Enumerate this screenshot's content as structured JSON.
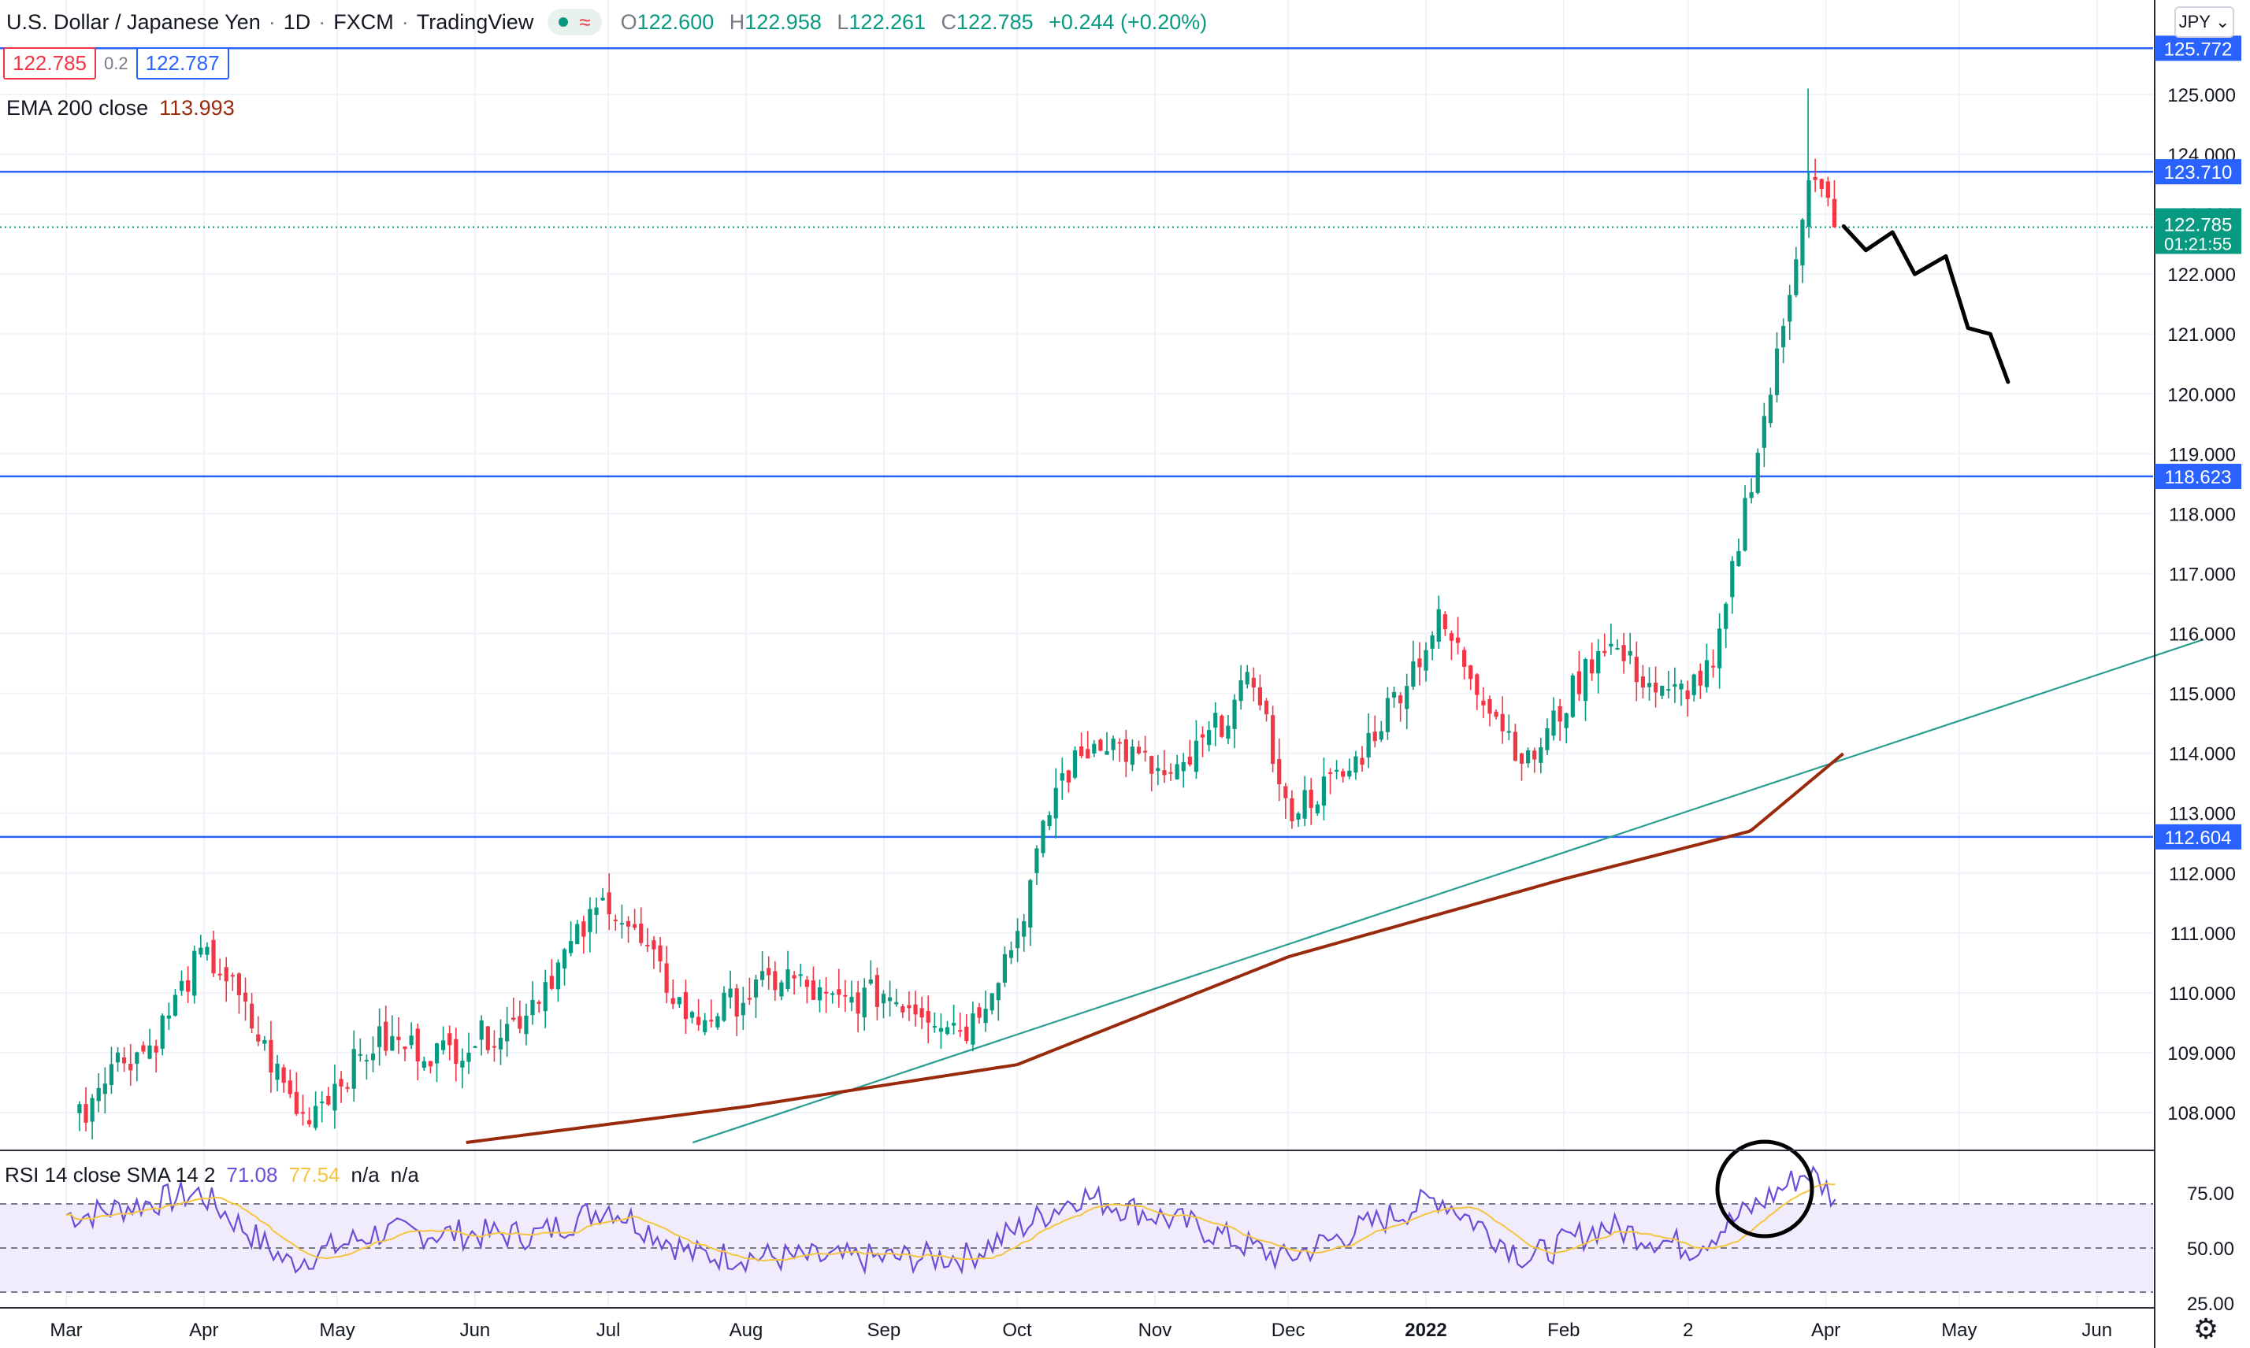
{
  "header": {
    "symbol": "U.S. Dollar / Japanese Yen",
    "interval": "1D",
    "broker": "FXCM",
    "platform": "TradingView",
    "sep": "·",
    "ohlc": {
      "o_label": "O",
      "o": "122.600",
      "h_label": "H",
      "h": "122.958",
      "l_label": "L",
      "l": "122.261",
      "c_label": "C",
      "c": "122.785",
      "change": "+0.244 (+0.20%)"
    },
    "bid": "122.785",
    "spread": "0.2",
    "ask": "122.787",
    "currency_button": "JPY"
  },
  "ema_legend": {
    "label": "EMA 200 close",
    "value": "113.993"
  },
  "rsi_legend": {
    "label": "RSI 14 close SMA 14 2",
    "rsi": "71.08",
    "sma": "77.54",
    "na1": "n/a",
    "na2": "n/a"
  },
  "colors": {
    "up": "#089981",
    "down": "#f23645",
    "ema": "#992b0c",
    "hline": "#2962ff",
    "trend": "#2a9d8f",
    "rsi": "#6c4ed6",
    "rsi_ma": "#f5c542",
    "rsi_band": "#f0ecfb"
  },
  "price_axis": {
    "ticks": [
      "108.000",
      "109.000",
      "110.000",
      "111.000",
      "112.000",
      "113.000",
      "114.000",
      "115.000",
      "116.000",
      "117.000",
      "118.000",
      "119.000",
      "120.000",
      "121.000",
      "122.000",
      "123.000",
      "124.000",
      "125.000"
    ],
    "hline_labels": [
      "125.772",
      "123.710",
      "118.623",
      "112.604"
    ],
    "last_price": "122.785",
    "countdown": "01:21:55"
  },
  "rsi_axis": {
    "ticks": [
      "75.00",
      "50.00",
      "25.00"
    ]
  },
  "time_axis": [
    "Mar",
    "Apr",
    "May",
    "Jun",
    "Jul",
    "Aug",
    "Sep",
    "Oct",
    "Nov",
    "Dec",
    "2022",
    "Feb",
    "2",
    "Apr",
    "May",
    "Jun"
  ],
  "chart_data": {
    "type": "candlestick",
    "title": "U.S. Dollar / Japanese Yen · 1D · FXCM",
    "x_range": [
      "2021-03",
      "2022-06"
    ],
    "ylim": [
      107.5,
      125.9
    ],
    "close_path": [
      {
        "x": "2021-03-05",
        "y": 108.0
      },
      {
        "x": "2021-03-10",
        "y": 108.8
      },
      {
        "x": "2021-03-20",
        "y": 109.1
      },
      {
        "x": "2021-03-31",
        "y": 110.6
      },
      {
        "x": "2021-04-05",
        "y": 110.4
      },
      {
        "x": "2021-04-15",
        "y": 109.0
      },
      {
        "x": "2021-04-23",
        "y": 107.9
      },
      {
        "x": "2021-05-10",
        "y": 109.2
      },
      {
        "x": "2021-05-25",
        "y": 109.0
      },
      {
        "x": "2021-06-10",
        "y": 109.5
      },
      {
        "x": "2021-07-01",
        "y": 111.6
      },
      {
        "x": "2021-07-20",
        "y": 109.5
      },
      {
        "x": "2021-08-10",
        "y": 110.3
      },
      {
        "x": "2021-08-20",
        "y": 109.8
      },
      {
        "x": "2021-09-01",
        "y": 110.0
      },
      {
        "x": "2021-09-20",
        "y": 109.4
      },
      {
        "x": "2021-10-01",
        "y": 111.0
      },
      {
        "x": "2021-10-10",
        "y": 113.5
      },
      {
        "x": "2021-10-20",
        "y": 114.3
      },
      {
        "x": "2021-11-05",
        "y": 113.5
      },
      {
        "x": "2021-11-24",
        "y": 115.3
      },
      {
        "x": "2021-11-30",
        "y": 113.0
      },
      {
        "x": "2021-12-15",
        "y": 113.7
      },
      {
        "x": "2022-01-04",
        "y": 116.2
      },
      {
        "x": "2022-01-24",
        "y": 113.8
      },
      {
        "x": "2022-02-10",
        "y": 115.9
      },
      {
        "x": "2022-02-24",
        "y": 114.9
      },
      {
        "x": "2022-03-07",
        "y": 115.4
      },
      {
        "x": "2022-03-14",
        "y": 118.2
      },
      {
        "x": "2022-03-22",
        "y": 120.9
      },
      {
        "x": "2022-03-28",
        "y": 123.7
      },
      {
        "x": "2022-04-04",
        "y": 122.8
      }
    ],
    "ohlc_high": 125.1,
    "ema_200": [
      {
        "x": "2021-05-30",
        "y": 107.5
      },
      {
        "x": "2021-08-01",
        "y": 108.1
      },
      {
        "x": "2021-10-01",
        "y": 108.8
      },
      {
        "x": "2021-12-01",
        "y": 110.6
      },
      {
        "x": "2022-02-01",
        "y": 111.9
      },
      {
        "x": "2022-03-15",
        "y": 112.7
      },
      {
        "x": "2022-04-05",
        "y": 114.0
      }
    ],
    "horizontal_levels": [
      125.772,
      123.71,
      118.623,
      112.604
    ],
    "trendline": {
      "from": {
        "x": "2021-07-20",
        "y": 107.5
      },
      "to": {
        "x": "2022-06-25",
        "y": 115.9
      }
    },
    "projection_drawing": [
      {
        "x": "2022-04-05",
        "y": 122.8
      },
      {
        "x": "2022-04-10",
        "y": 122.4
      },
      {
        "x": "2022-04-16",
        "y": 122.7
      },
      {
        "x": "2022-04-21",
        "y": 122.0
      },
      {
        "x": "2022-04-28",
        "y": 122.3
      },
      {
        "x": "2022-05-03",
        "y": 121.1
      },
      {
        "x": "2022-05-08",
        "y": 121.0
      },
      {
        "x": "2022-05-12",
        "y": 120.2
      }
    ],
    "rsi": {
      "ylim": [
        25,
        90
      ],
      "levels": [
        70,
        50,
        30
      ],
      "rsi_path": [
        {
          "x": "2021-03-05",
          "y": 65
        },
        {
          "x": "2021-03-31",
          "y": 75
        },
        {
          "x": "2021-04-20",
          "y": 43
        },
        {
          "x": "2021-05-10",
          "y": 57
        },
        {
          "x": "2021-06-15",
          "y": 56
        },
        {
          "x": "2021-07-01",
          "y": 69
        },
        {
          "x": "2021-07-20",
          "y": 47
        },
        {
          "x": "2021-08-20",
          "y": 45
        },
        {
          "x": "2021-09-20",
          "y": 46
        },
        {
          "x": "2021-10-15",
          "y": 74
        },
        {
          "x": "2021-11-10",
          "y": 60
        },
        {
          "x": "2021-11-30",
          "y": 45
        },
        {
          "x": "2022-01-04",
          "y": 73
        },
        {
          "x": "2022-01-24",
          "y": 45
        },
        {
          "x": "2022-02-10",
          "y": 60
        },
        {
          "x": "2022-03-02",
          "y": 50
        },
        {
          "x": "2022-03-28",
          "y": 85
        },
        {
          "x": "2022-04-04",
          "y": 71
        }
      ]
    }
  }
}
